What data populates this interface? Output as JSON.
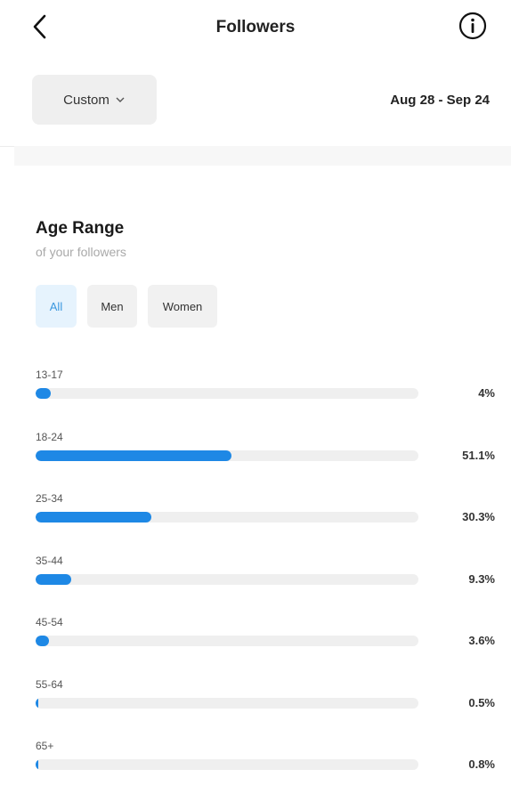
{
  "header": {
    "title": "Followers"
  },
  "filters": {
    "period_label": "Custom",
    "date_range": "Aug 28 - Sep 24"
  },
  "section": {
    "title": "Age Range",
    "subtitle": "of your followers",
    "tabs": [
      {
        "label": "All",
        "active": true
      },
      {
        "label": "Men",
        "active": false
      },
      {
        "label": "Women",
        "active": false
      }
    ]
  },
  "colors": {
    "accent": "#1e88e5",
    "track": "#efefef"
  },
  "age_rows": [
    {
      "label": "13-17",
      "value_text": "4%",
      "fraction": 0.04
    },
    {
      "label": "18-24",
      "value_text": "51.1%",
      "fraction": 0.511
    },
    {
      "label": "25-34",
      "value_text": "30.3%",
      "fraction": 0.303
    },
    {
      "label": "35-44",
      "value_text": "9.3%",
      "fraction": 0.093
    },
    {
      "label": "45-54",
      "value_text": "3.6%",
      "fraction": 0.036
    },
    {
      "label": "55-64",
      "value_text": "0.5%",
      "fraction": 0.005
    },
    {
      "label": "65+",
      "value_text": "0.8%",
      "fraction": 0.008
    }
  ]
}
